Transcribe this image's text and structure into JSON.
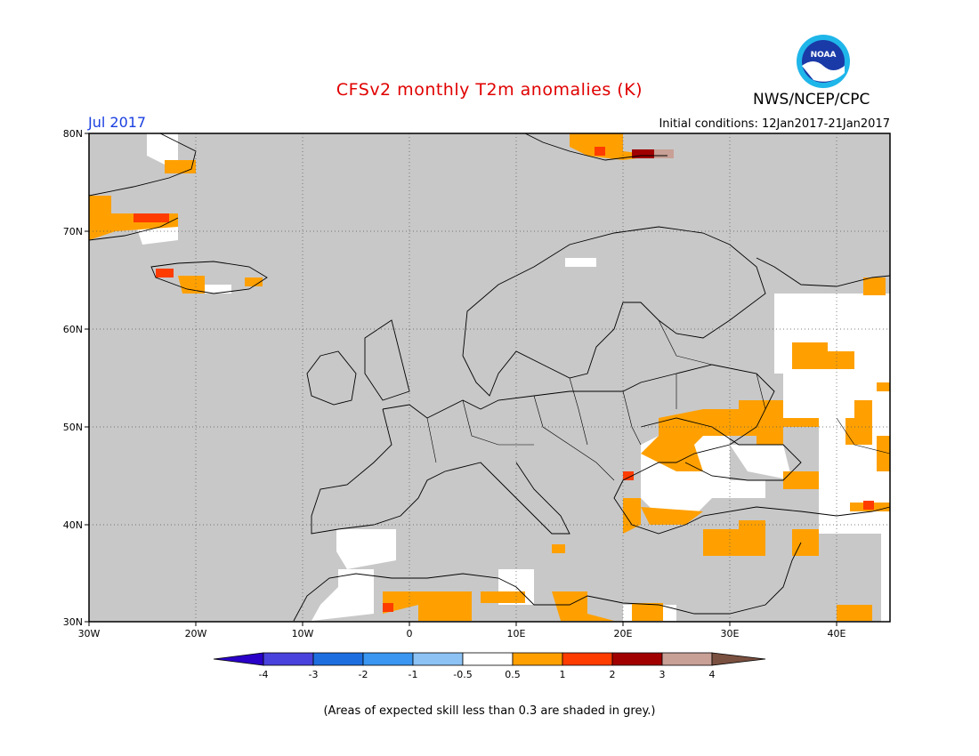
{
  "header": {
    "title": "CFSv2 monthly T2m anomalies (K)",
    "month": "Jul 2017",
    "initial_conditions": "Initial conditions: 12Jan2017-21Jan2017",
    "org": "NWS/NCEP/CPC",
    "logo_text": "NOAA"
  },
  "map": {
    "lon_labels": [
      "30W",
      "20W",
      "10W",
      "0",
      "10E",
      "20E",
      "30E",
      "40E"
    ],
    "lat_labels": [
      "80N",
      "70N",
      "60N",
      "50N",
      "40N",
      "30N"
    ],
    "background_color": "#c8c8c8",
    "grid": true
  },
  "legend": {
    "labels": [
      "-4",
      "-3",
      "-2",
      "-1",
      "-0.5",
      "0.5",
      "1",
      "2",
      "3",
      "4"
    ],
    "colors": [
      "#2a00c8",
      "#4a42dc",
      "#1e6ee0",
      "#3a96f0",
      "#8cc2f4",
      "#ffffff",
      "#ffa000",
      "#ff3c00",
      "#a00000",
      "#c8a096",
      "#7a5040"
    ]
  },
  "footnote": "(Areas of expected skill less than 0.3 are shaded in grey.)"
}
